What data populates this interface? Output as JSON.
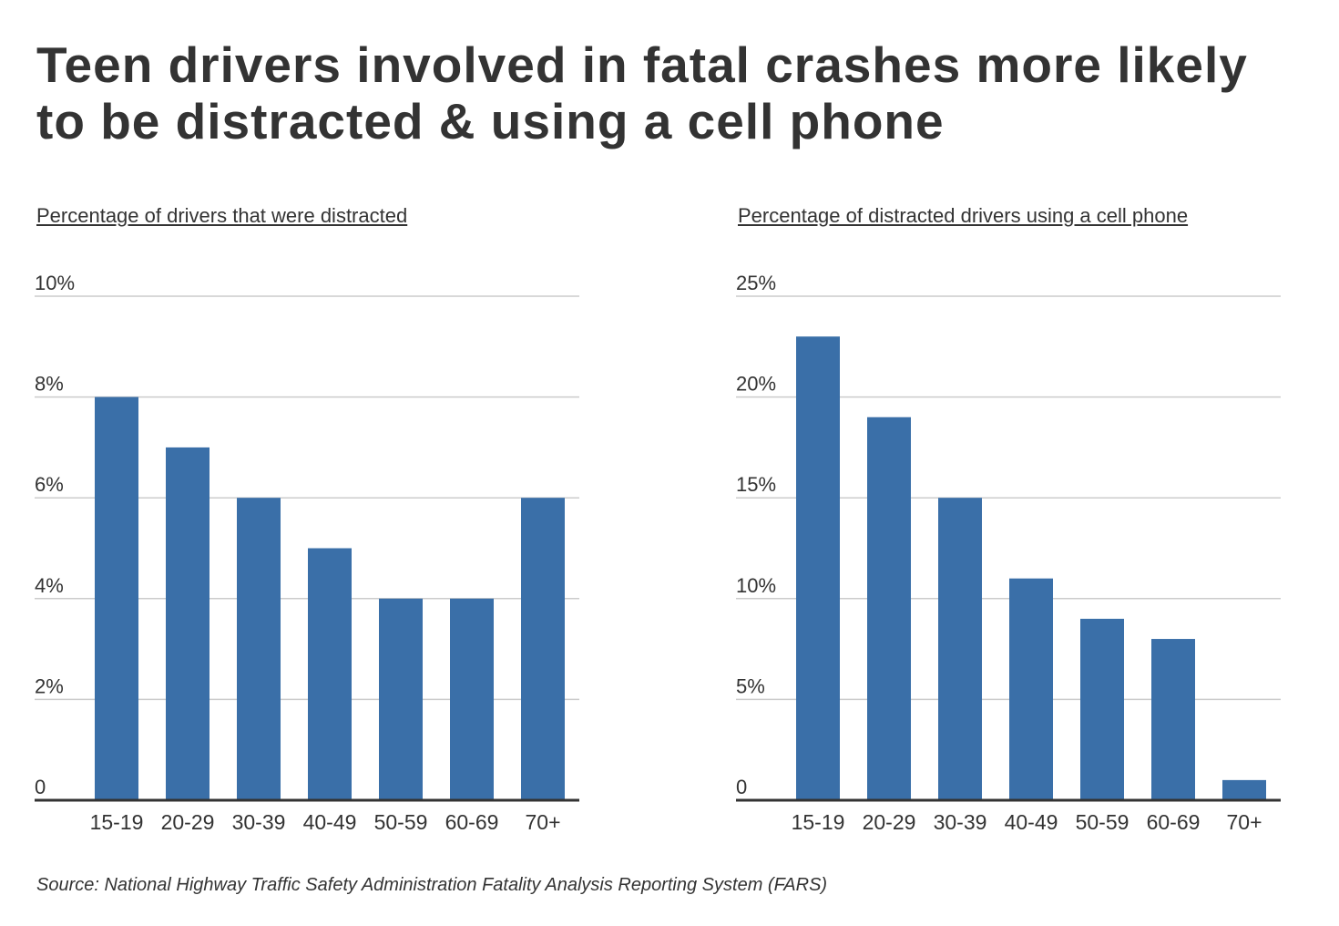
{
  "title": "Teen drivers involved in fatal crashes more likely to be distracted & using a cell phone",
  "source": "Source: National Highway Traffic Safety Administration Fatality Analysis Reporting System (FARS)",
  "colors": {
    "bar": "#3a6fa8",
    "grid": "#cccccc",
    "axis": "#333333",
    "text": "#333333"
  },
  "chart_data": [
    {
      "type": "bar",
      "title": "Percentage of drivers that were distracted",
      "categories": [
        "15-19",
        "20-29",
        "30-39",
        "40-49",
        "50-59",
        "60-69",
        "70+"
      ],
      "values": [
        8,
        7,
        6,
        5,
        4,
        4,
        6
      ],
      "ylim": [
        0,
        10
      ],
      "yticks": [
        0,
        2,
        4,
        6,
        8,
        10
      ],
      "ytick_labels": [
        "0",
        "2%",
        "4%",
        "6%",
        "8%",
        "10%"
      ],
      "grid": true
    },
    {
      "type": "bar",
      "title": "Percentage of distracted drivers using a cell phone",
      "categories": [
        "15-19",
        "20-29",
        "30-39",
        "40-49",
        "50-59",
        "60-69",
        "70+"
      ],
      "values": [
        23,
        19,
        15,
        11,
        9,
        8,
        1
      ],
      "ylim": [
        0,
        25
      ],
      "yticks": [
        0,
        5,
        10,
        15,
        20,
        25
      ],
      "ytick_labels": [
        "0",
        "5%",
        "10%",
        "15%",
        "20%",
        "25%"
      ],
      "grid": true
    }
  ]
}
